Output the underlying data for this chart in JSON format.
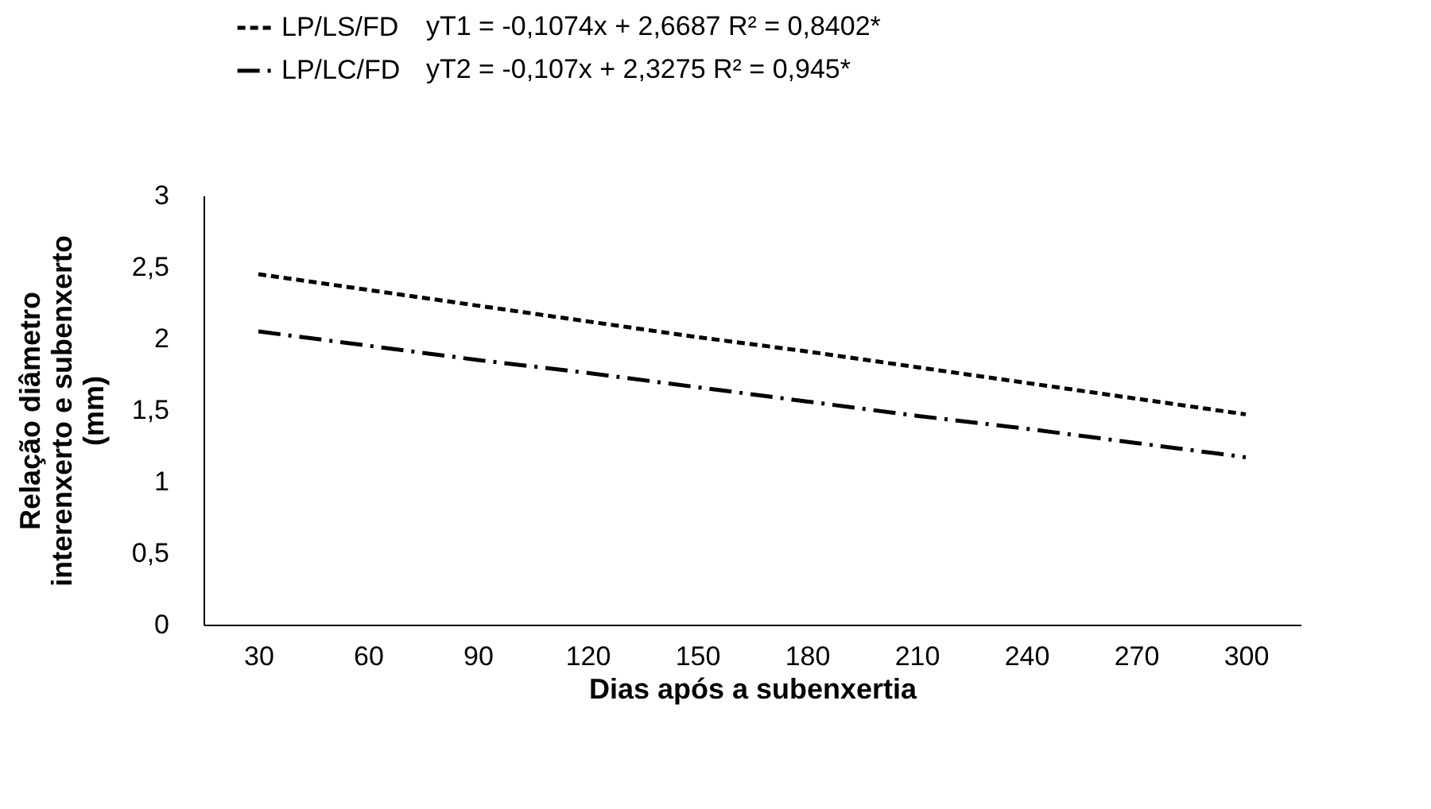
{
  "chart_data": {
    "type": "line",
    "xlabel": "Dias após a subenxertia",
    "ylabel": "Relação diâmetro interenxerto e subenxerto (mm)",
    "categories": [
      "30",
      "60",
      "90",
      "120",
      "150",
      "180",
      "210",
      "240",
      "270",
      "300"
    ],
    "series": [
      {
        "name": "LP/LS/FD",
        "color": "#000000",
        "line_style": "dashed",
        "values": [
          2.45,
          2.34,
          2.23,
          2.12,
          2.01,
          1.91,
          1.8,
          1.69,
          1.58,
          1.47
        ]
      },
      {
        "name": "LP/LC/FD",
        "color": "#000000",
        "line_style": "dashdot",
        "values": [
          2.05,
          1.95,
          1.85,
          1.76,
          1.66,
          1.56,
          1.46,
          1.37,
          1.27,
          1.17
        ]
      }
    ],
    "annotations": [
      "yT1 = -0,1074x + 2,6687 R² = 0,8402*",
      "yT2 = -0,107x + 2,3275 R² = 0,945*"
    ],
    "ylim": [
      0,
      3
    ],
    "yticks": [
      0,
      {
        "value": 0.5,
        "label": "0,5"
      },
      1,
      {
        "value": 1.5,
        "label": "1,5"
      },
      2,
      {
        "value": 2.5,
        "label": "2,5"
      },
      3
    ],
    "grid": false,
    "legend": "top left",
    "marker": "none"
  }
}
